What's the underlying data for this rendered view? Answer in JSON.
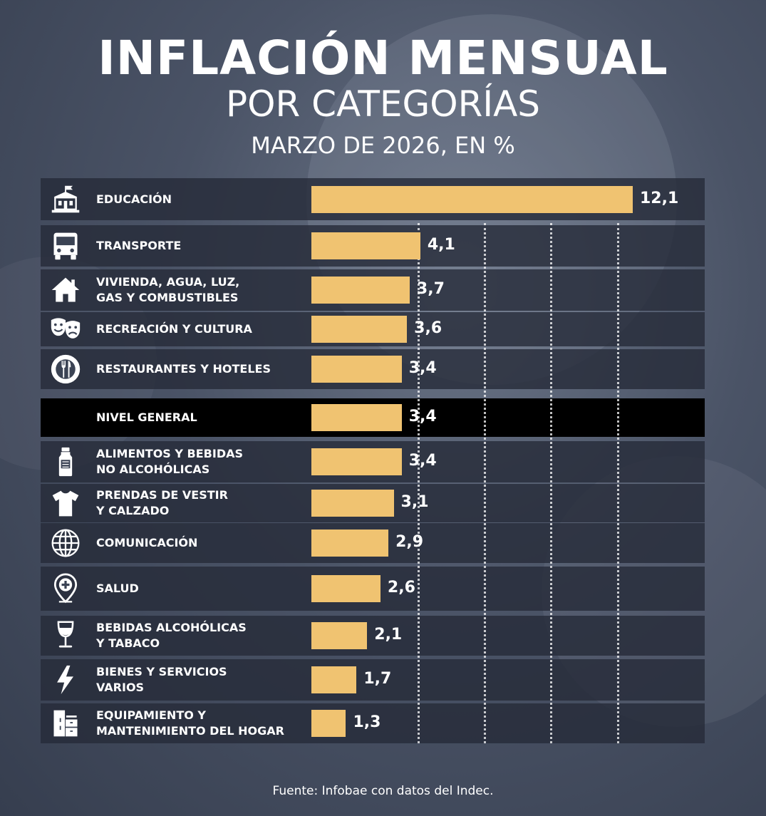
{
  "title": "INFLACIÓN MENSUAL",
  "subtitle": "POR CATEGORÍAS",
  "subtitle2": "MARZO DE 2026, EN %",
  "source": "Fuente: Infobae con datos del Indec.",
  "colors": {
    "bar": "#f0c371",
    "row": "#262b38",
    "highlight_row": "#000000",
    "text": "#ffffff"
  },
  "chart_data": {
    "type": "bar",
    "orientation": "horizontal",
    "categories": [
      "EDUCACIÓN",
      "TRANSPORTE",
      "VIVIENDA, AGUA, LUZ,\nGAS Y COMBUSTIBLES",
      "RECREACIÓN Y CULTURA",
      "RESTAURANTES Y HOTELES",
      "NIVEL GENERAL",
      "ALIMENTOS Y BEBIDAS\nNO ALCOHÓLICAS",
      "PRENDAS DE VESTIR\nY CALZADO",
      "COMUNICACIÓN",
      "SALUD",
      "BEBIDAS ALCOHÓLICAS\nY TABACO",
      "BIENES Y SERVICIOS\nVARIOS",
      "EQUIPAMIENTO Y\nMANTENIMIENTO DEL HOGAR"
    ],
    "values": [
      12.1,
      4.1,
      3.7,
      3.6,
      3.4,
      3.4,
      3.4,
      3.1,
      2.9,
      2.6,
      2.1,
      1.7,
      1.3
    ],
    "value_labels": [
      "12,1",
      "4,1",
      "3,7",
      "3,6",
      "3,4",
      "3,4",
      "3,4",
      "3,1",
      "2,9",
      "2,6",
      "2,1",
      "1,7",
      "1,3"
    ],
    "icons": [
      "school-icon",
      "bus-icon",
      "house-icon",
      "theater-masks-icon",
      "restaurant-plate-icon",
      "",
      "bottle-icon",
      "tshirt-icon",
      "globe-icon",
      "health-pin-icon",
      "wine-glass-icon",
      "lightning-icon",
      "furniture-icon"
    ],
    "highlight_index": 5,
    "xlim": [
      0,
      12.1
    ],
    "gridlines": [
      4,
      6.5,
      9,
      11.5
    ],
    "grid": true,
    "axis_visible": false,
    "legend": "none"
  }
}
